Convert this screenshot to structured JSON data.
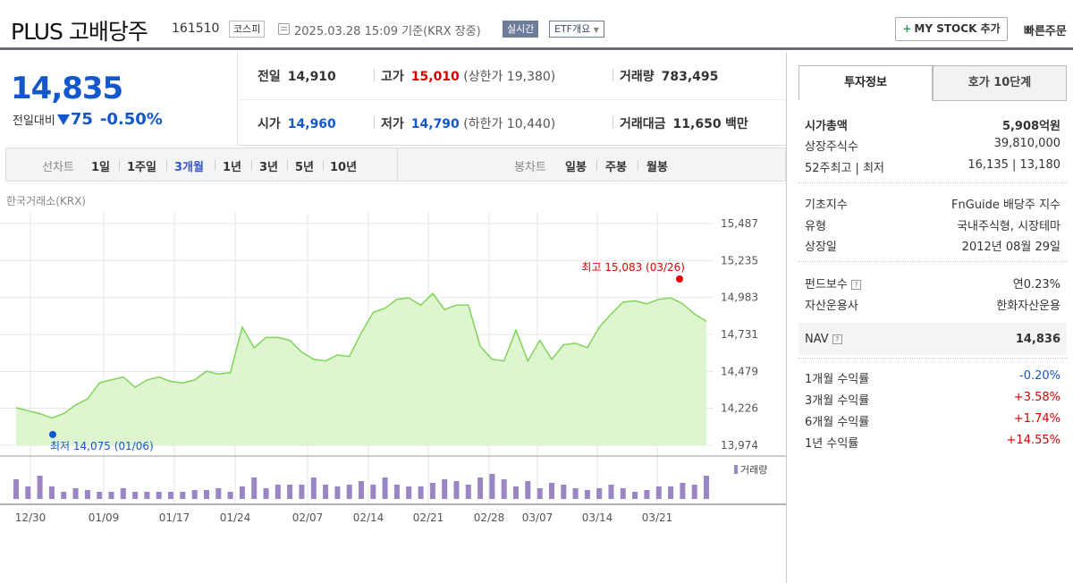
{
  "header": {
    "title": "PLUS 고배당주",
    "code": "161510",
    "market": "코스피",
    "timestamp": "2025.03.28 15:09 기준(KRX 장중)",
    "realtime": "실시간",
    "etf_overview": "ETF개요",
    "mystock_label": "MY STOCK 추가",
    "quick_order": "빠른주문"
  },
  "price": {
    "current": "14,835",
    "change_label": "전일대비",
    "change": "75",
    "change_pct": "-0.50%"
  },
  "summary": {
    "prev_close": {
      "label": "전일",
      "value": "14,910"
    },
    "high": {
      "label": "고가",
      "value": "15,010",
      "sub": "(상한가 19,380)"
    },
    "volume": {
      "label": "거래량",
      "value": "783,495"
    },
    "open": {
      "label": "시가",
      "value": "14,960"
    },
    "low": {
      "label": "저가",
      "value": "14,790",
      "sub": "(하한가 10,440)"
    },
    "amount": {
      "label": "거래대금",
      "value": "11,650",
      "unit": "백만"
    }
  },
  "chart_tabs": {
    "line_label": "선차트",
    "periods": [
      "1일",
      "1주일",
      "3개월",
      "1년",
      "3년",
      "5년",
      "10년"
    ],
    "active_period": "3개월",
    "candle_label": "봉차트",
    "candles": [
      "일봉",
      "주봉",
      "월봉"
    ]
  },
  "exchange": "한국거래소(KRX)",
  "colors": {
    "line": "#7fd45a",
    "fill": "#dff5cf",
    "volume": "#9a86c4",
    "high_marker": "#e00000",
    "low_marker": "#1357ca"
  },
  "chart_data": {
    "type": "area",
    "title": "",
    "y_ticks": [
      "15,487",
      "15,235",
      "14,983",
      "14,731",
      "14,479",
      "14,226",
      "13,974"
    ],
    "ylim": [
      13974,
      15487
    ],
    "x_tick_labels": [
      "12/30",
      "01/09",
      "01/17",
      "01/24",
      "02/07",
      "02/14",
      "02/21",
      "02/28",
      "03/07",
      "03/14",
      "03/21"
    ],
    "high_label": "최고 15,083 (03/26)",
    "low_label": "최저 14,075 (01/06)",
    "volume_label": "거래량",
    "prices": [
      14230,
      14210,
      14190,
      14160,
      14190,
      14250,
      14290,
      14400,
      14420,
      14440,
      14370,
      14420,
      14440,
      14410,
      14400,
      14420,
      14480,
      14460,
      14470,
      14780,
      14640,
      14710,
      14710,
      14690,
      14610,
      14560,
      14550,
      14590,
      14580,
      14740,
      14880,
      14910,
      14970,
      14980,
      14930,
      15010,
      14900,
      14930,
      14930,
      14650,
      14560,
      14550,
      14760,
      14550,
      14690,
      14560,
      14660,
      14670,
      14640,
      14780,
      14870,
      14950,
      14960,
      14940,
      14970,
      14980,
      14940,
      14870,
      14820
    ],
    "volumes": [
      0.55,
      0.35,
      0.65,
      0.35,
      0.2,
      0.3,
      0.25,
      0.2,
      0.2,
      0.3,
      0.2,
      0.2,
      0.2,
      0.2,
      0.2,
      0.25,
      0.25,
      0.3,
      0.2,
      0.35,
      0.6,
      0.3,
      0.4,
      0.4,
      0.4,
      0.6,
      0.4,
      0.35,
      0.4,
      0.5,
      0.4,
      0.6,
      0.4,
      0.35,
      0.35,
      0.45,
      0.55,
      0.5,
      0.4,
      0.6,
      0.7,
      0.55,
      0.35,
      0.5,
      0.3,
      0.45,
      0.4,
      0.3,
      0.25,
      0.3,
      0.4,
      0.3,
      0.2,
      0.25,
      0.35,
      0.35,
      0.45,
      0.4,
      0.65
    ]
  },
  "right_panel": {
    "tabs": [
      "투자정보",
      "호가 10단계"
    ],
    "rows1": [
      {
        "label": "시가총액",
        "value": "5,908억원"
      },
      {
        "label": "상장주식수",
        "value": "39,810,000"
      },
      {
        "label": "52주최고 | 최저",
        "value": "16,135 | 13,180"
      }
    ],
    "rows2": [
      {
        "label": "기초지수",
        "value": "FnGuide 배당주 지수"
      },
      {
        "label": "유형",
        "value": "국내주식형, 시장테마"
      },
      {
        "label": "상장일",
        "value": "2012년 08월 29일"
      }
    ],
    "rows3": [
      {
        "label": "펀드보수",
        "value": "연0.23%"
      },
      {
        "label": "자산운용사",
        "value": "한화자산운용"
      }
    ],
    "nav": {
      "label": "NAV",
      "value": "14,836"
    },
    "returns": [
      {
        "label": "1개월 수익률",
        "value": "-0.20%"
      },
      {
        "label": "3개월 수익률",
        "value": "+3.58%"
      },
      {
        "label": "6개월 수익률",
        "value": "+1.74%"
      },
      {
        "label": "1년 수익률",
        "value": "+14.55%"
      }
    ]
  }
}
